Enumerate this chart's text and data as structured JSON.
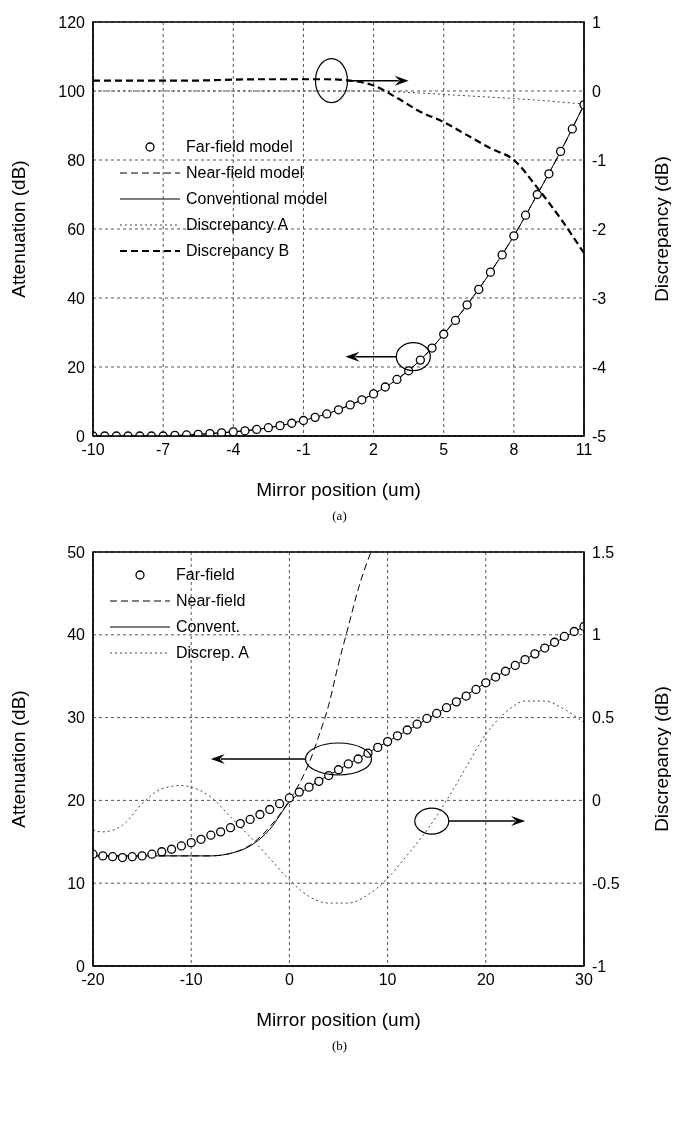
{
  "chart_data": [
    {
      "type": "line",
      "xlabel": "Mirror position (um)",
      "ylabel": "Attenuation (dB)",
      "y2label": "Discrepancy (dB)",
      "annotations": [
        "(a)"
      ],
      "xlim": [
        -10,
        11
      ],
      "xticks": [
        -10,
        -7,
        -4,
        -1,
        2,
        5,
        8,
        11
      ],
      "ylim": [
        0,
        120
      ],
      "yticks": [
        0,
        20,
        40,
        60,
        80,
        100,
        120
      ],
      "y2lim": [
        -5,
        1
      ],
      "y2ticks": [
        -5,
        -4,
        -3,
        -2,
        -1,
        0,
        1
      ],
      "grid": true,
      "legend": "left",
      "series": [
        {
          "name": "Far-field model",
          "type": "scatter",
          "marker": "circle",
          "color": "#000000",
          "x": [
            -10,
            -9.5,
            -9,
            -8.5,
            -8,
            -7.5,
            -7,
            -6.5,
            -6,
            -5.5,
            -5,
            -4.5,
            -4,
            -3.5,
            -3,
            -2.5,
            -2,
            -1.5,
            -1,
            -0.5,
            0,
            0.5,
            1,
            1.5,
            2,
            2.5,
            3,
            3.5,
            4,
            4.5,
            5,
            5.5,
            6,
            6.5,
            7,
            7.5,
            8,
            8.5,
            9,
            9.5,
            10,
            10.5,
            11
          ],
          "values": [
            0,
            0,
            0,
            0,
            0,
            0,
            0,
            0.2,
            0.3,
            0.5,
            0.7,
            0.9,
            1.2,
            1.5,
            1.9,
            2.4,
            3,
            3.7,
            4.5,
            5.4,
            6.4,
            7.6,
            9,
            10.5,
            12.2,
            14.2,
            16.4,
            18.9,
            22,
            25.5,
            29.5,
            33.5,
            38,
            42.5,
            47.5,
            52.5,
            58,
            64,
            70,
            76,
            82.5,
            89,
            96
          ]
        },
        {
          "name": "Near-field model",
          "type": "line",
          "line_style": "dashed",
          "color": "#000000",
          "x": [
            -10,
            -9,
            -8,
            -7,
            -6,
            -5,
            -4,
            -3,
            -2,
            -1,
            0,
            1,
            2,
            3,
            4,
            5,
            6,
            7,
            8,
            9,
            10,
            11
          ],
          "values": [
            0,
            0,
            0,
            0,
            0.3,
            0.7,
            1.2,
            1.9,
            3,
            4.5,
            6.4,
            9,
            12.2,
            16.4,
            22,
            29.5,
            38,
            47.5,
            58,
            70,
            82.5,
            96
          ]
        },
        {
          "name": "Conventional model",
          "type": "line",
          "line_style": "solid",
          "color": "#000000",
          "x": [
            -10,
            -9,
            -8,
            -7,
            -6,
            -5,
            -4,
            -3,
            -2,
            -1,
            0,
            1,
            2,
            3,
            4,
            5,
            6,
            7,
            8,
            9,
            10,
            11
          ],
          "values": [
            0,
            0,
            0,
            0,
            0.3,
            0.7,
            1.2,
            1.9,
            3,
            4.5,
            6.4,
            9,
            12.2,
            16.4,
            22,
            29.5,
            38,
            47.5,
            58,
            70,
            82.5,
            96
          ]
        },
        {
          "name": "Discrepancy A",
          "type": "line",
          "line_style": "dotted",
          "axis": "y2",
          "color": "#444444",
          "x": [
            -10,
            -5,
            0,
            2,
            4,
            6,
            8,
            10,
            11
          ],
          "values": [
            0,
            0,
            0,
            0,
            -0.03,
            -0.07,
            -0.11,
            -0.16,
            -0.19
          ]
        },
        {
          "name": "Discrepancy B",
          "type": "line",
          "line_style": "dashed",
          "axis": "y2",
          "color": "#000000",
          "x": [
            -10,
            -6,
            -3,
            0,
            1,
            2,
            3,
            4,
            5,
            6,
            7,
            8,
            9,
            10,
            11
          ],
          "values": [
            0.15,
            0.15,
            0.17,
            0.17,
            0.15,
            0.08,
            -0.1,
            -0.3,
            -0.45,
            -0.64,
            -0.83,
            -1.0,
            -1.4,
            -1.85,
            -2.35
          ]
        }
      ]
    },
    {
      "type": "line",
      "xlabel": "Mirror position (um)",
      "ylabel": "Attenuation (dB)",
      "y2label": "Discrepancy (dB)",
      "annotations": [
        "(b)"
      ],
      "xlim": [
        -20,
        30
      ],
      "xticks": [
        -20,
        -10,
        0,
        10,
        20,
        30
      ],
      "ylim": [
        0,
        50
      ],
      "yticks": [
        0,
        10,
        20,
        30,
        40,
        50
      ],
      "y2lim": [
        -1,
        1.5
      ],
      "y2ticks": [
        -1,
        -0.5,
        0,
        0.5,
        1,
        1.5
      ],
      "grid": true,
      "legend": "top left",
      "series": [
        {
          "name": "Far-field",
          "type": "scatter",
          "marker": "circle",
          "color": "#000000",
          "x": [
            -20,
            -19,
            -18,
            -17,
            -16,
            -15,
            -14,
            -13,
            -12,
            -11,
            -10,
            -9,
            -8,
            -7,
            -6,
            -5,
            -4,
            -3,
            -2,
            -1,
            0,
            1,
            2,
            3,
            4,
            5,
            6,
            7,
            8,
            9,
            10,
            11,
            12,
            13,
            14,
            15,
            16,
            17,
            18,
            19,
            20,
            21,
            22,
            23,
            24,
            25,
            26,
            27,
            28,
            29,
            30
          ],
          "values": [
            13.5,
            13.3,
            13.2,
            13.1,
            13.2,
            13.3,
            13.5,
            13.8,
            14.1,
            14.5,
            14.9,
            15.3,
            15.8,
            16.2,
            16.7,
            17.2,
            17.7,
            18.3,
            18.9,
            19.6,
            20.3,
            21,
            21.6,
            22.3,
            23,
            23.7,
            24.4,
            25,
            25.7,
            26.4,
            27.1,
            27.8,
            28.5,
            29.2,
            29.9,
            30.5,
            31.2,
            31.9,
            32.6,
            33.4,
            34.2,
            34.9,
            35.6,
            36.3,
            37,
            37.7,
            38.4,
            39.1,
            39.8,
            40.4,
            41
          ]
        },
        {
          "name": "Near-field",
          "type": "line",
          "line_style": "dashed",
          "color": "#000000",
          "x": [
            -20,
            -15,
            -10,
            -8,
            -6,
            -4,
            -2,
            0,
            1,
            2,
            3,
            4,
            5,
            6,
            7,
            8.3
          ],
          "values": [
            13.3,
            13.3,
            13.3,
            13.3,
            13.6,
            14.6,
            16.8,
            20,
            22,
            24.5,
            27.8,
            31.5,
            36.5,
            41,
            45.5,
            50
          ]
        },
        {
          "name": "Convent.",
          "type": "line",
          "line_style": "solid",
          "color": "#000000",
          "x": [
            -20,
            -15,
            -10,
            -8,
            -6,
            -4,
            -2,
            0,
            2,
            5,
            10,
            15,
            20,
            25,
            30
          ],
          "values": [
            13.3,
            13.3,
            13.3,
            13.3,
            13.6,
            14.5,
            16.5,
            19.8,
            21.6,
            23.7,
            27.1,
            30.5,
            34.2,
            37.7,
            41
          ]
        },
        {
          "name": "Discrep. A",
          "type": "line",
          "line_style": "dotted",
          "axis": "y2",
          "color": "#444444",
          "x": [
            -20,
            -19,
            -17,
            -15,
            -13,
            -11,
            -10,
            -8,
            -6,
            -4,
            -2,
            0,
            2,
            4,
            6,
            8,
            10,
            12,
            14,
            16,
            18,
            20,
            22,
            24,
            26,
            28,
            30
          ],
          "values": [
            -0.18,
            -0.19,
            -0.15,
            -0.02,
            0.07,
            0.09,
            0.08,
            0.02,
            -0.1,
            -0.22,
            -0.35,
            -0.48,
            -0.58,
            -0.62,
            -0.62,
            -0.57,
            -0.47,
            -0.33,
            -0.18,
            0,
            0.2,
            0.4,
            0.53,
            0.6,
            0.6,
            0.55,
            0.47
          ]
        }
      ]
    }
  ]
}
